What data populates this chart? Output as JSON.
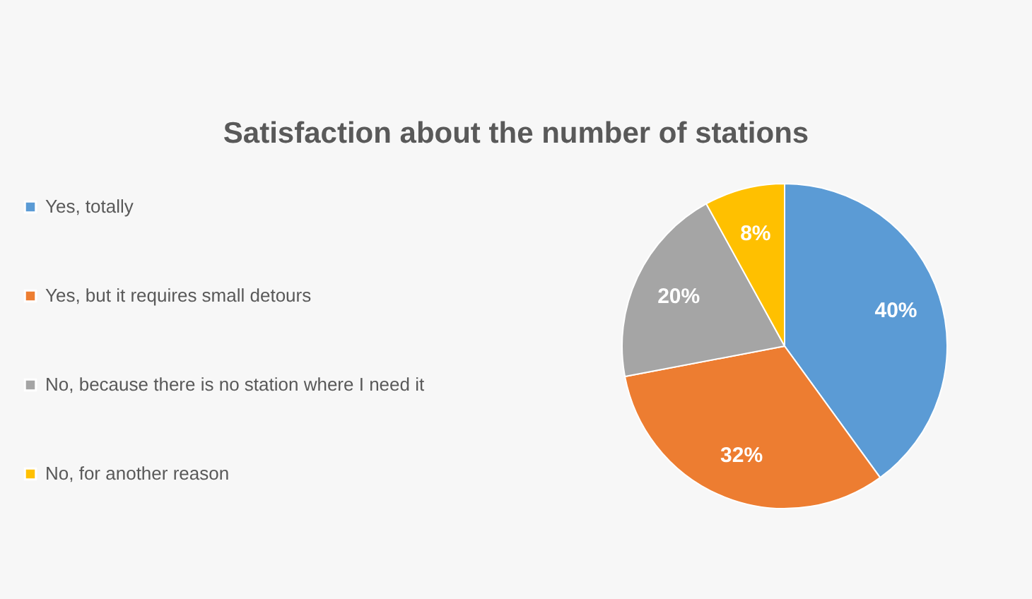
{
  "chart_data": {
    "type": "pie",
    "title": "Satisfaction about the number of stations",
    "categories": [
      "Yes, totally",
      "Yes, but it requires small detours",
      "No, because there is no station where I need it",
      "No, for another reason"
    ],
    "values": [
      40,
      32,
      20,
      8
    ],
    "colors": [
      "#5b9bd5",
      "#ed7d31",
      "#a5a5a5",
      "#ffc000"
    ],
    "value_labels": [
      "40%",
      "32%",
      "20%",
      "8%"
    ],
    "legend": "left"
  }
}
